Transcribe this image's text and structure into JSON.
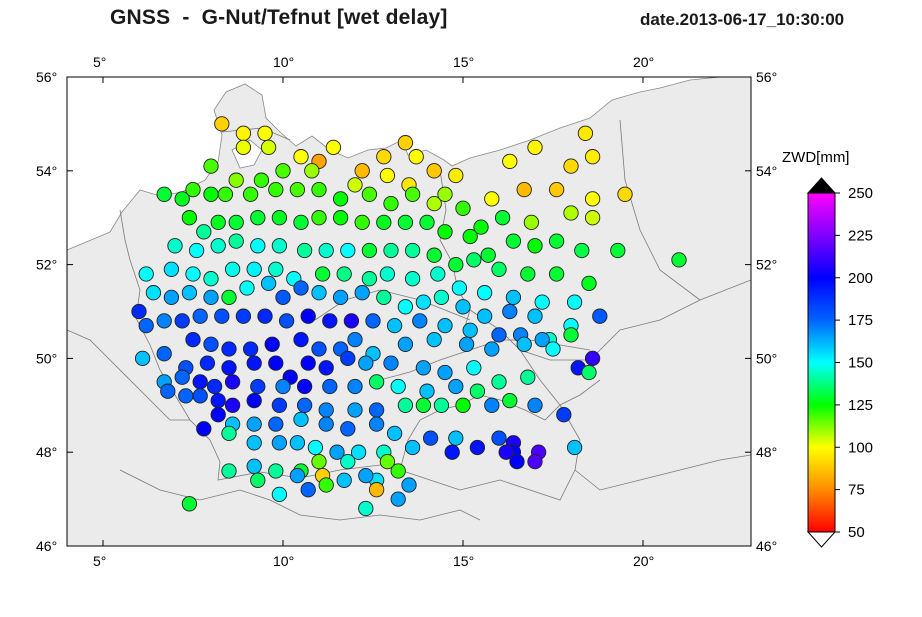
{
  "title": "GNSS  -  G-Nut/Tefnut [wet delay]",
  "date": "date.2013-06-17_10:30:00",
  "map": {
    "lon_range": [
      4,
      23
    ],
    "lat_range": [
      46,
      56
    ],
    "lon_ticks": [
      "5°",
      "10°",
      "15°",
      "20°"
    ],
    "lat_ticks": [
      "46°",
      "48°",
      "50°",
      "52°",
      "54°",
      "56°"
    ],
    "land_color": "#ebebeb",
    "sea_color": "#ffffff",
    "border_color": "#7a7a7a"
  },
  "colorbar": {
    "label": "ZWD[mm]",
    "min": 50,
    "max": 250,
    "ticks": [
      "250",
      "225",
      "200",
      "175",
      "150",
      "125",
      "100",
      "75",
      "50"
    ],
    "colors": [
      "#ff0000",
      "#ff8c00",
      "#ffff00",
      "#00ff00",
      "#00ffff",
      "#0064ff",
      "#0000ff",
      "#ff00ff"
    ],
    "extend_top_color": "#000000",
    "extend_bottom_color": "#ffffff"
  },
  "stations": [
    [
      8.3,
      55.0,
      90
    ],
    [
      8.9,
      54.8,
      98
    ],
    [
      9.5,
      54.8,
      100
    ],
    [
      8.9,
      54.5,
      102
    ],
    [
      9.6,
      54.5,
      104
    ],
    [
      10.5,
      54.3,
      100
    ],
    [
      11.0,
      54.2,
      80
    ],
    [
      11.4,
      54.5,
      100
    ],
    [
      12.2,
      54.0,
      85
    ],
    [
      12.8,
      54.3,
      92
    ],
    [
      13.4,
      54.6,
      90
    ],
    [
      13.7,
      54.3,
      100
    ],
    [
      14.2,
      54.0,
      88
    ],
    [
      13.5,
      53.7,
      95
    ],
    [
      12.9,
      53.9,
      100
    ],
    [
      12.0,
      53.7,
      105
    ],
    [
      10.8,
      54.0,
      110
    ],
    [
      10.0,
      54.0,
      118
    ],
    [
      9.4,
      53.8,
      120
    ],
    [
      8.7,
      53.8,
      112
    ],
    [
      8.0,
      54.1,
      118
    ],
    [
      16.3,
      54.2,
      100
    ],
    [
      17.0,
      54.5,
      98
    ],
    [
      18.4,
      54.8,
      95
    ],
    [
      18.6,
      54.3,
      96
    ],
    [
      18.0,
      54.1,
      92
    ],
    [
      17.6,
      53.6,
      88
    ],
    [
      16.7,
      53.6,
      85
    ],
    [
      15.8,
      53.4,
      100
    ],
    [
      19.5,
      53.5,
      92
    ],
    [
      18.6,
      53.4,
      100
    ],
    [
      14.8,
      53.9,
      96
    ],
    [
      14.2,
      53.3,
      108
    ],
    [
      6.7,
      53.5,
      130
    ],
    [
      7.2,
      53.4,
      128
    ],
    [
      7.5,
      53.6,
      120
    ],
    [
      8.0,
      53.5,
      125
    ],
    [
      8.4,
      53.5,
      120
    ],
    [
      9.1,
      53.5,
      120
    ],
    [
      9.8,
      53.6,
      120
    ],
    [
      10.4,
      53.6,
      118
    ],
    [
      11.0,
      53.6,
      120
    ],
    [
      11.6,
      53.4,
      125
    ],
    [
      12.4,
      53.5,
      118
    ],
    [
      13.0,
      53.3,
      120
    ],
    [
      13.6,
      53.5,
      118
    ],
    [
      14.5,
      53.5,
      110
    ],
    [
      15.0,
      53.2,
      120
    ],
    [
      15.5,
      52.8,
      125
    ],
    [
      16.1,
      53.0,
      130
    ],
    [
      16.9,
      52.9,
      110
    ],
    [
      18.0,
      53.1,
      108
    ],
    [
      18.6,
      53.0,
      105
    ],
    [
      19.3,
      52.3,
      130
    ],
    [
      21.0,
      52.1,
      130
    ],
    [
      7.4,
      53.0,
      125
    ],
    [
      7.8,
      52.7,
      140
    ],
    [
      8.2,
      52.9,
      128
    ],
    [
      8.7,
      52.9,
      130
    ],
    [
      9.3,
      53.0,
      130
    ],
    [
      9.9,
      53.0,
      128
    ],
    [
      10.5,
      52.9,
      130
    ],
    [
      11.0,
      53.0,
      120
    ],
    [
      11.6,
      53.0,
      125
    ],
    [
      12.2,
      52.9,
      120
    ],
    [
      12.8,
      52.9,
      128
    ],
    [
      13.4,
      52.9,
      130
    ],
    [
      14.0,
      52.9,
      130
    ],
    [
      14.5,
      52.7,
      125
    ],
    [
      15.2,
      52.6,
      125
    ],
    [
      15.7,
      52.2,
      130
    ],
    [
      16.4,
      52.5,
      130
    ],
    [
      17.0,
      52.4,
      125
    ],
    [
      17.6,
      52.5,
      130
    ],
    [
      18.3,
      52.3,
      132
    ],
    [
      7.0,
      52.4,
      145
    ],
    [
      7.6,
      52.3,
      150
    ],
    [
      8.2,
      52.4,
      145
    ],
    [
      8.7,
      52.5,
      140
    ],
    [
      9.3,
      52.4,
      150
    ],
    [
      9.9,
      52.4,
      145
    ],
    [
      10.6,
      52.3,
      140
    ],
    [
      11.2,
      52.3,
      145
    ],
    [
      11.8,
      52.3,
      150
    ],
    [
      12.4,
      52.3,
      130
    ],
    [
      13.0,
      52.3,
      140
    ],
    [
      13.6,
      52.3,
      140
    ],
    [
      14.2,
      52.2,
      130
    ],
    [
      14.8,
      52.0,
      130
    ],
    [
      15.3,
      52.1,
      135
    ],
    [
      16.0,
      51.9,
      135
    ],
    [
      16.8,
      51.8,
      130
    ],
    [
      17.6,
      51.8,
      130
    ],
    [
      18.5,
      51.6,
      128
    ],
    [
      6.2,
      51.8,
      150
    ],
    [
      6.9,
      51.9,
      155
    ],
    [
      7.5,
      51.8,
      150
    ],
    [
      8.0,
      51.7,
      145
    ],
    [
      8.6,
      51.9,
      148
    ],
    [
      9.2,
      51.9,
      152
    ],
    [
      9.8,
      51.9,
      145
    ],
    [
      10.3,
      51.7,
      150
    ],
    [
      11.1,
      51.8,
      130
    ],
    [
      11.7,
      51.8,
      138
    ],
    [
      12.4,
      51.7,
      140
    ],
    [
      12.9,
      51.8,
      145
    ],
    [
      13.6,
      51.7,
      145
    ],
    [
      14.3,
      51.8,
      145
    ],
    [
      14.9,
      51.5,
      150
    ],
    [
      15.6,
      51.4,
      150
    ],
    [
      16.4,
      51.3,
      160
    ],
    [
      17.2,
      51.2,
      150
    ],
    [
      18.1,
      51.2,
      150
    ],
    [
      6.0,
      51.0,
      190
    ],
    [
      6.4,
      51.4,
      155
    ],
    [
      6.9,
      51.3,
      165
    ],
    [
      7.4,
      51.4,
      160
    ],
    [
      8.0,
      51.3,
      165
    ],
    [
      8.5,
      51.3,
      130
    ],
    [
      9.0,
      51.5,
      150
    ],
    [
      9.6,
      51.6,
      160
    ],
    [
      10.0,
      51.3,
      178
    ],
    [
      10.5,
      51.5,
      175
    ],
    [
      11.0,
      51.4,
      160
    ],
    [
      11.6,
      51.3,
      165
    ],
    [
      12.2,
      51.4,
      165
    ],
    [
      12.8,
      51.3,
      140
    ],
    [
      13.4,
      51.1,
      150
    ],
    [
      13.9,
      51.2,
      155
    ],
    [
      14.4,
      51.3,
      145
    ],
    [
      15.0,
      51.1,
      160
    ],
    [
      15.6,
      50.9,
      160
    ],
    [
      16.3,
      51.0,
      170
    ],
    [
      17.0,
      50.9,
      160
    ],
    [
      18.0,
      50.7,
      150
    ],
    [
      18.8,
      50.9,
      178
    ],
    [
      6.2,
      50.7,
      175
    ],
    [
      6.7,
      50.8,
      170
    ],
    [
      7.2,
      50.8,
      185
    ],
    [
      7.7,
      50.9,
      175
    ],
    [
      8.3,
      50.9,
      180
    ],
    [
      8.9,
      50.9,
      185
    ],
    [
      9.5,
      50.9,
      190
    ],
    [
      10.1,
      50.8,
      180
    ],
    [
      10.7,
      50.9,
      200
    ],
    [
      11.3,
      50.8,
      195
    ],
    [
      11.9,
      50.8,
      205
    ],
    [
      12.5,
      50.8,
      175
    ],
    [
      13.1,
      50.7,
      160
    ],
    [
      13.8,
      50.8,
      170
    ],
    [
      14.5,
      50.7,
      160
    ],
    [
      15.2,
      50.6,
      160
    ],
    [
      16.0,
      50.5,
      175
    ],
    [
      16.6,
      50.5,
      170
    ],
    [
      17.4,
      50.4,
      145
    ],
    [
      18.0,
      50.5,
      130
    ],
    [
      7.5,
      50.4,
      190
    ],
    [
      8.0,
      50.3,
      180
    ],
    [
      8.5,
      50.2,
      190
    ],
    [
      9.1,
      50.2,
      190
    ],
    [
      9.7,
      50.3,
      200
    ],
    [
      10.5,
      50.4,
      195
    ],
    [
      11.0,
      50.2,
      180
    ],
    [
      11.6,
      50.2,
      175
    ],
    [
      12.0,
      50.4,
      170
    ],
    [
      12.5,
      50.1,
      160
    ],
    [
      13.4,
      50.3,
      165
    ],
    [
      14.2,
      50.4,
      160
    ],
    [
      15.1,
      50.3,
      165
    ],
    [
      15.8,
      50.2,
      165
    ],
    [
      16.7,
      50.3,
      160
    ],
    [
      17.2,
      50.4,
      165
    ],
    [
      17.5,
      50.2,
      150
    ],
    [
      6.1,
      50.0,
      160
    ],
    [
      6.7,
      50.1,
      175
    ],
    [
      7.3,
      49.8,
      180
    ],
    [
      7.9,
      49.9,
      190
    ],
    [
      8.5,
      49.8,
      195
    ],
    [
      9.2,
      49.9,
      195
    ],
    [
      9.8,
      49.9,
      200
    ],
    [
      10.2,
      49.6,
      200
    ],
    [
      10.7,
      49.9,
      200
    ],
    [
      11.2,
      49.8,
      195
    ],
    [
      11.8,
      50.0,
      185
    ],
    [
      12.3,
      49.9,
      165
    ],
    [
      13.0,
      49.9,
      170
    ],
    [
      13.9,
      49.8,
      165
    ],
    [
      14.5,
      49.7,
      165
    ],
    [
      15.3,
      49.8,
      150
    ],
    [
      16.0,
      49.5,
      140
    ],
    [
      16.8,
      49.6,
      140
    ],
    [
      18.2,
      49.8,
      195
    ],
    [
      18.6,
      50.0,
      210
    ],
    [
      18.5,
      49.7,
      135
    ],
    [
      6.7,
      49.5,
      165
    ],
    [
      7.2,
      49.6,
      175
    ],
    [
      7.7,
      49.5,
      195
    ],
    [
      8.1,
      49.4,
      190
    ],
    [
      8.6,
      49.5,
      205
    ],
    [
      9.3,
      49.4,
      185
    ],
    [
      10.0,
      49.4,
      170
    ],
    [
      10.6,
      49.4,
      200
    ],
    [
      11.3,
      49.4,
      175
    ],
    [
      12.0,
      49.4,
      170
    ],
    [
      12.6,
      49.5,
      135
    ],
    [
      13.2,
      49.4,
      150
    ],
    [
      14.0,
      49.3,
      160
    ],
    [
      14.8,
      49.4,
      165
    ],
    [
      15.4,
      49.3,
      135
    ],
    [
      6.8,
      49.3,
      175
    ],
    [
      7.3,
      49.2,
      175
    ],
    [
      7.7,
      49.2,
      180
    ],
    [
      8.2,
      49.1,
      195
    ],
    [
      8.6,
      49.0,
      205
    ],
    [
      9.2,
      49.1,
      200
    ],
    [
      9.9,
      49.0,
      185
    ],
    [
      10.6,
      49.0,
      175
    ],
    [
      11.2,
      48.9,
      170
    ],
    [
      12.0,
      48.9,
      165
    ],
    [
      12.6,
      48.9,
      175
    ],
    [
      13.4,
      49.0,
      140
    ],
    [
      13.9,
      49.0,
      130
    ],
    [
      14.4,
      49.0,
      140
    ],
    [
      15.0,
      49.0,
      125
    ],
    [
      15.8,
      49.0,
      170
    ],
    [
      16.3,
      49.1,
      130
    ],
    [
      17.0,
      49.0,
      170
    ],
    [
      17.8,
      48.8,
      185
    ],
    [
      8.2,
      48.8,
      200
    ],
    [
      8.6,
      48.6,
      160
    ],
    [
      9.2,
      48.6,
      165
    ],
    [
      9.8,
      48.6,
      175
    ],
    [
      10.5,
      48.7,
      160
    ],
    [
      11.2,
      48.6,
      170
    ],
    [
      11.8,
      48.5,
      175
    ],
    [
      12.6,
      48.6,
      170
    ],
    [
      13.1,
      48.4,
      160
    ],
    [
      14.1,
      48.3,
      180
    ],
    [
      14.8,
      48.3,
      160
    ],
    [
      16.0,
      48.3,
      180
    ],
    [
      16.4,
      48.2,
      205
    ],
    [
      16.4,
      48.0,
      200
    ],
    [
      17.1,
      48.0,
      215
    ],
    [
      18.1,
      48.1,
      160
    ],
    [
      7.8,
      48.5,
      200
    ],
    [
      8.5,
      48.4,
      140
    ],
    [
      9.2,
      48.2,
      160
    ],
    [
      9.9,
      48.2,
      165
    ],
    [
      10.4,
      48.2,
      160
    ],
    [
      10.9,
      48.1,
      150
    ],
    [
      11.5,
      48.0,
      165
    ],
    [
      12.1,
      48.0,
      155
    ],
    [
      12.8,
      48.0,
      145
    ],
    [
      13.6,
      48.1,
      160
    ],
    [
      14.7,
      48.0,
      195
    ],
    [
      15.4,
      48.1,
      195
    ],
    [
      16.2,
      48.0,
      205
    ],
    [
      16.5,
      47.8,
      200
    ],
    [
      17.0,
      47.8,
      215
    ],
    [
      8.5,
      47.6,
      140
    ],
    [
      9.2,
      47.7,
      160
    ],
    [
      9.8,
      47.6,
      140
    ],
    [
      10.5,
      47.6,
      130
    ],
    [
      11.0,
      47.8,
      115
    ],
    [
      11.8,
      47.8,
      145
    ],
    [
      12.9,
      47.8,
      115
    ],
    [
      13.2,
      47.6,
      120
    ],
    [
      9.3,
      47.4,
      135
    ],
    [
      10.4,
      47.5,
      165
    ],
    [
      11.1,
      47.5,
      90
    ],
    [
      11.2,
      47.3,
      120
    ],
    [
      12.6,
      47.4,
      155
    ],
    [
      13.5,
      47.3,
      165
    ],
    [
      11.7,
      47.4,
      160
    ],
    [
      12.3,
      47.5,
      165
    ],
    [
      9.9,
      47.1,
      150
    ],
    [
      10.7,
      47.2,
      175
    ],
    [
      12.6,
      47.2,
      85
    ],
    [
      13.2,
      47.0,
      165
    ],
    [
      12.3,
      46.8,
      145
    ],
    [
      7.4,
      46.9,
      130
    ]
  ]
}
